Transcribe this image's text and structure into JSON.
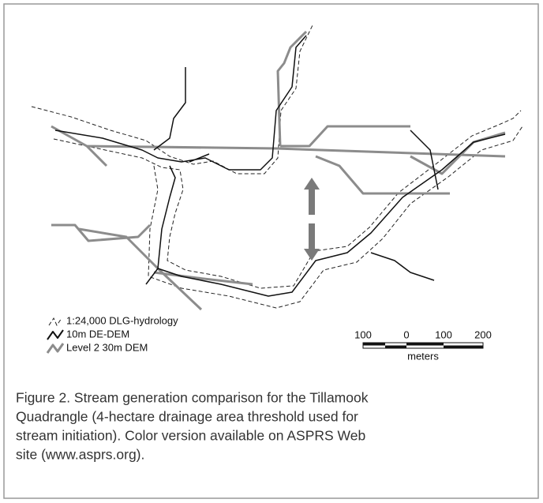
{
  "legend": [
    "1:24,000 DLG-hydrology",
    "10m DE-DEM",
    "Level 2 30m DEM"
  ],
  "scale_bar": {
    "labels": [
      "100",
      "0",
      "100",
      "200"
    ],
    "unit": "meters"
  },
  "caption": [
    "Figure 2.  Stream generation comparison for the Tillamook",
    "Quadrangle (4-hectare drainage area threshold used for",
    "stream initiation). Color version available on ASPRS Web",
    "site (www.asprs.org)."
  ]
}
